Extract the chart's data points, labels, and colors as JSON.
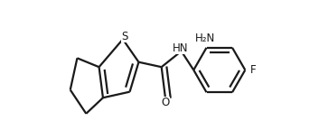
{
  "background_color": "#ffffff",
  "line_color": "#1a1a1a",
  "line_width": 1.6,
  "font_size": 8.5,
  "figsize": [
    3.53,
    1.55
  ],
  "dpi": 100,
  "xlim": [
    0.0,
    1.0
  ],
  "ylim": [
    0.0,
    1.0
  ]
}
